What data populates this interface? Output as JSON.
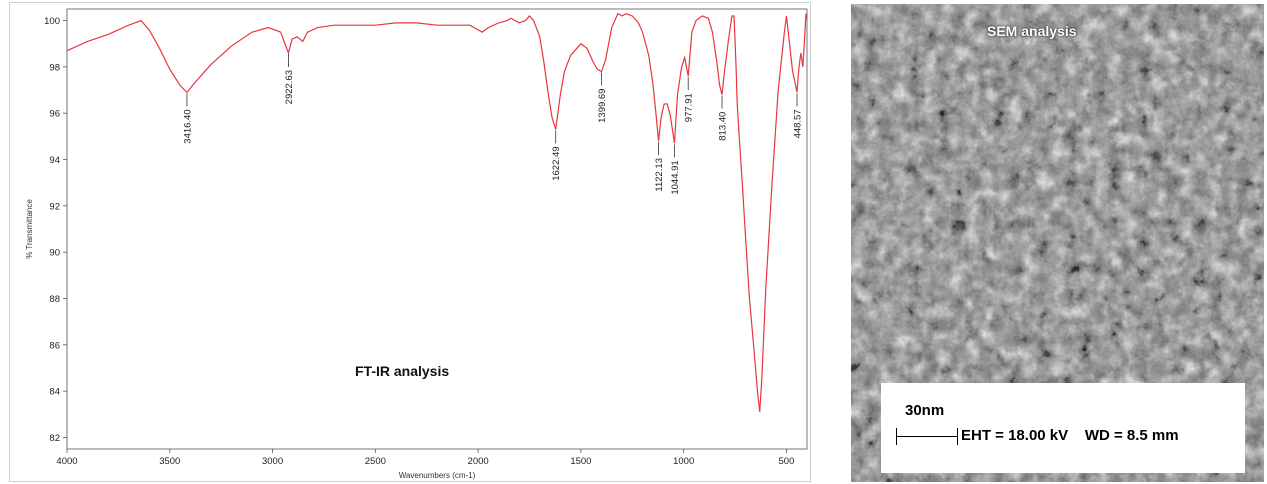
{
  "ftir": {
    "caption": "FT-IR analysis",
    "colors": {
      "line": "#e8363d",
      "axis": "#555555",
      "peak_marker": "#333333"
    }
  },
  "sem": {
    "title": "SEM analysis",
    "scale_bar_label": "30nm",
    "eht": "EHT = 18.00 kV",
    "wd": "WD = 8.5 mm"
  },
  "chart_data": {
    "type": "line",
    "title": "",
    "xlabel": "Wavenumbers (cm-1)",
    "ylabel": "% Transmittance",
    "xlim": [
      4000,
      400
    ],
    "ylim": [
      81.5,
      100.5
    ],
    "x_reversed": true,
    "x_ticks": [
      4000,
      3500,
      3000,
      2500,
      2000,
      1500,
      1000,
      500
    ],
    "y_ticks": [
      82,
      84,
      86,
      88,
      90,
      92,
      94,
      96,
      98,
      100
    ],
    "grid": false,
    "series": [
      {
        "x": [
          4000,
          3900,
          3800,
          3700,
          3640,
          3600,
          3550,
          3500,
          3450,
          3416.4,
          3380,
          3300,
          3200,
          3100,
          3020,
          2960,
          2940,
          2922.63,
          2905,
          2880,
          2853,
          2830,
          2780,
          2700,
          2600,
          2500,
          2400,
          2300,
          2200,
          2100,
          2040,
          2000,
          1980,
          1950,
          1900,
          1860,
          1840,
          1800,
          1770,
          1750,
          1730,
          1700,
          1680,
          1660,
          1640,
          1622.49,
          1600,
          1580,
          1550,
          1530,
          1500,
          1470,
          1440,
          1420,
          1399.69,
          1380,
          1350,
          1320,
          1300,
          1280,
          1250,
          1220,
          1200,
          1170,
          1150,
          1135,
          1122.13,
          1110,
          1095,
          1080,
          1065,
          1044.91,
          1030,
          1010,
          995,
          977.91,
          960,
          940,
          910,
          880,
          860,
          840,
          825,
          813.4,
          800,
          780,
          765,
          755,
          745,
          740,
          730,
          715,
          700,
          680,
          660,
          640,
          630,
          620,
          600,
          570,
          540,
          510,
          500,
          490,
          470,
          460,
          448.57,
          440,
          430,
          420,
          410,
          405,
          400
        ],
        "y": [
          98.7,
          99.1,
          99.4,
          99.8,
          100.0,
          99.6,
          98.8,
          97.9,
          97.2,
          96.9,
          97.3,
          98.1,
          98.9,
          99.5,
          99.7,
          99.5,
          99.0,
          98.6,
          99.2,
          99.3,
          99.1,
          99.5,
          99.7,
          99.8,
          99.8,
          99.8,
          99.9,
          99.9,
          99.8,
          99.8,
          99.8,
          99.6,
          99.5,
          99.7,
          99.9,
          100.0,
          100.1,
          99.9,
          100.0,
          100.2,
          100.0,
          99.3,
          98.2,
          96.9,
          95.8,
          95.3,
          96.8,
          97.8,
          98.5,
          98.7,
          99.0,
          98.8,
          98.2,
          97.9,
          97.8,
          98.3,
          99.7,
          100.3,
          100.2,
          100.3,
          100.2,
          99.9,
          99.5,
          98.5,
          97.3,
          96.0,
          94.8,
          95.8,
          96.4,
          96.4,
          95.9,
          94.7,
          96.8,
          98.0,
          98.4,
          97.6,
          99.5,
          100.0,
          100.2,
          100.1,
          99.5,
          98.3,
          97.2,
          96.8,
          97.9,
          99.3,
          100.2,
          100.2,
          98.0,
          96.5,
          95.0,
          93.0,
          90.8,
          88.0,
          86.0,
          83.9,
          83.1,
          84.5,
          88.5,
          93.0,
          97.0,
          99.5,
          100.2,
          99.4,
          97.8,
          97.4,
          96.9,
          97.9,
          98.6,
          98.0,
          99.5,
          100.3,
          100.1
        ]
      }
    ],
    "peaks": [
      {
        "x": 3416.4,
        "label": "3416.40"
      },
      {
        "x": 2922.63,
        "label": "2922.63"
      },
      {
        "x": 1622.49,
        "label": "1622.49"
      },
      {
        "x": 1399.69,
        "label": "1399.69"
      },
      {
        "x": 1122.13,
        "label": "1122.13"
      },
      {
        "x": 1044.91,
        "label": "1044.91"
      },
      {
        "x": 977.91,
        "label": "977.91"
      },
      {
        "x": 813.4,
        "label": "813.40"
      },
      {
        "x": 448.57,
        "label": "448.57"
      }
    ]
  }
}
